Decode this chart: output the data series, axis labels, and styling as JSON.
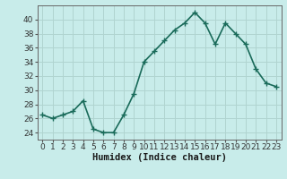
{
  "x": [
    0,
    1,
    2,
    3,
    4,
    5,
    6,
    7,
    8,
    9,
    10,
    11,
    12,
    13,
    14,
    15,
    16,
    17,
    18,
    19,
    20,
    21,
    22,
    23
  ],
  "y": [
    26.5,
    26.0,
    26.5,
    27.0,
    28.5,
    24.5,
    24.0,
    24.0,
    26.5,
    29.5,
    34.0,
    35.5,
    37.0,
    38.5,
    39.5,
    41.0,
    39.5,
    36.5,
    39.5,
    38.0,
    36.5,
    33.0,
    31.0,
    30.5
  ],
  "line_color": "#1a6b5a",
  "marker": "+",
  "marker_size": 4,
  "linewidth": 1.2,
  "bg_color": "#c8ecea",
  "grid_color": "#b0d4d0",
  "xlabel": "Humidex (Indice chaleur)",
  "ylim": [
    23,
    42
  ],
  "xlim": [
    -0.5,
    23.5
  ],
  "yticks": [
    24,
    26,
    28,
    30,
    32,
    34,
    36,
    38,
    40
  ],
  "xticks": [
    0,
    1,
    2,
    3,
    4,
    5,
    6,
    7,
    8,
    9,
    10,
    11,
    12,
    13,
    14,
    15,
    16,
    17,
    18,
    19,
    20,
    21,
    22,
    23
  ],
  "tick_fontsize": 6.5,
  "xlabel_fontsize": 7.5
}
